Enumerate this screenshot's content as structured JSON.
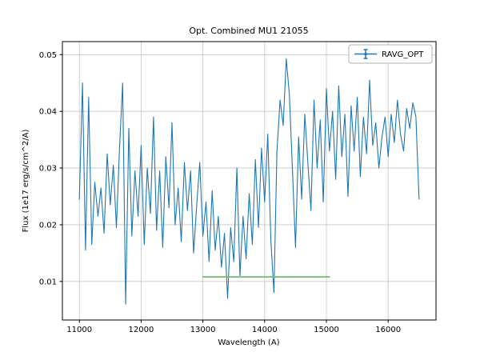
{
  "title": "Opt. Combined MU1 21055",
  "legend": {
    "label": "RAVG_OPT",
    "position": "upper right"
  },
  "colors": {
    "line": "#1f77b4",
    "baseline": "#74b874",
    "grid": "#c6c6c6",
    "axis": "#000000",
    "legend_border": "#b0b0b0",
    "background": "#ffffff"
  },
  "chart_data": {
    "type": "line",
    "title": "Opt. Combined MU1 21055",
    "xlabel": "Wavelength (A)",
    "ylabel": "Flux (1e17 erg/s/cm^2/A)",
    "xlim": [
      10725,
      16775
    ],
    "ylim": [
      0.0032,
      0.0523
    ],
    "xticks": [
      11000,
      12000,
      13000,
      14000,
      15000,
      16000
    ],
    "yticks": [
      0.01,
      0.02,
      0.03,
      0.04,
      0.05
    ],
    "grid": true,
    "legend_position": "upper right",
    "series": [
      {
        "name": "RAVG_OPT",
        "color": "#1f77b4",
        "x": [
          11000,
          11050,
          11100,
          11150,
          11200,
          11250,
          11300,
          11350,
          11400,
          11450,
          11500,
          11550,
          11600,
          11650,
          11700,
          11750,
          11800,
          11850,
          11900,
          11950,
          12000,
          12050,
          12100,
          12150,
          12200,
          12250,
          12300,
          12350,
          12400,
          12450,
          12500,
          12550,
          12600,
          12650,
          12700,
          12750,
          12800,
          12850,
          12900,
          12950,
          13000,
          13050,
          13100,
          13150,
          13200,
          13250,
          13300,
          13350,
          13400,
          13450,
          13500,
          13550,
          13600,
          13650,
          13700,
          13750,
          13800,
          13850,
          13900,
          13950,
          14000,
          14050,
          14100,
          14150,
          14200,
          14250,
          14300,
          14350,
          14400,
          14450,
          14500,
          14550,
          14600,
          14650,
          14700,
          14750,
          14800,
          14850,
          14900,
          14950,
          15000,
          15050,
          15100,
          15150,
          15200,
          15250,
          15300,
          15350,
          15400,
          15450,
          15500,
          15550,
          15600,
          15650,
          15700,
          15750,
          15800,
          15850,
          15900,
          15950,
          16000,
          16050,
          16100,
          16150,
          16200,
          16250,
          16300,
          16350,
          16400,
          16450,
          16500
        ],
        "y": [
          0.0245,
          0.045,
          0.0155,
          0.0425,
          0.0165,
          0.0275,
          0.0215,
          0.0265,
          0.0185,
          0.0325,
          0.0235,
          0.0305,
          0.0195,
          0.0335,
          0.045,
          0.006,
          0.037,
          0.018,
          0.0295,
          0.0215,
          0.034,
          0.0165,
          0.03,
          0.022,
          0.039,
          0.019,
          0.0295,
          0.016,
          0.032,
          0.023,
          0.038,
          0.02,
          0.0265,
          0.017,
          0.031,
          0.0225,
          0.0295,
          0.015,
          0.0235,
          0.031,
          0.018,
          0.024,
          0.0135,
          0.026,
          0.0155,
          0.0215,
          0.0125,
          0.0185,
          0.007,
          0.0195,
          0.0135,
          0.03,
          0.011,
          0.0215,
          0.014,
          0.0255,
          0.0165,
          0.0315,
          0.0195,
          0.0335,
          0.024,
          0.036,
          0.0175,
          0.008,
          0.033,
          0.042,
          0.0375,
          0.0493,
          0.043,
          0.03,
          0.016,
          0.0355,
          0.0245,
          0.0395,
          0.031,
          0.0225,
          0.042,
          0.03,
          0.0385,
          0.024,
          0.044,
          0.033,
          0.04,
          0.028,
          0.0445,
          0.032,
          0.0395,
          0.025,
          0.041,
          0.033,
          0.0425,
          0.0285,
          0.039,
          0.0325,
          0.0455,
          0.034,
          0.038,
          0.03,
          0.0355,
          0.039,
          0.032,
          0.0395,
          0.0345,
          0.042,
          0.036,
          0.033,
          0.0405,
          0.037,
          0.0415,
          0.039,
          0.0245
        ]
      },
      {
        "name": "baseline",
        "color": "#74b874",
        "x": [
          13000,
          15050
        ],
        "y": [
          0.0108,
          0.0108
        ]
      }
    ]
  }
}
